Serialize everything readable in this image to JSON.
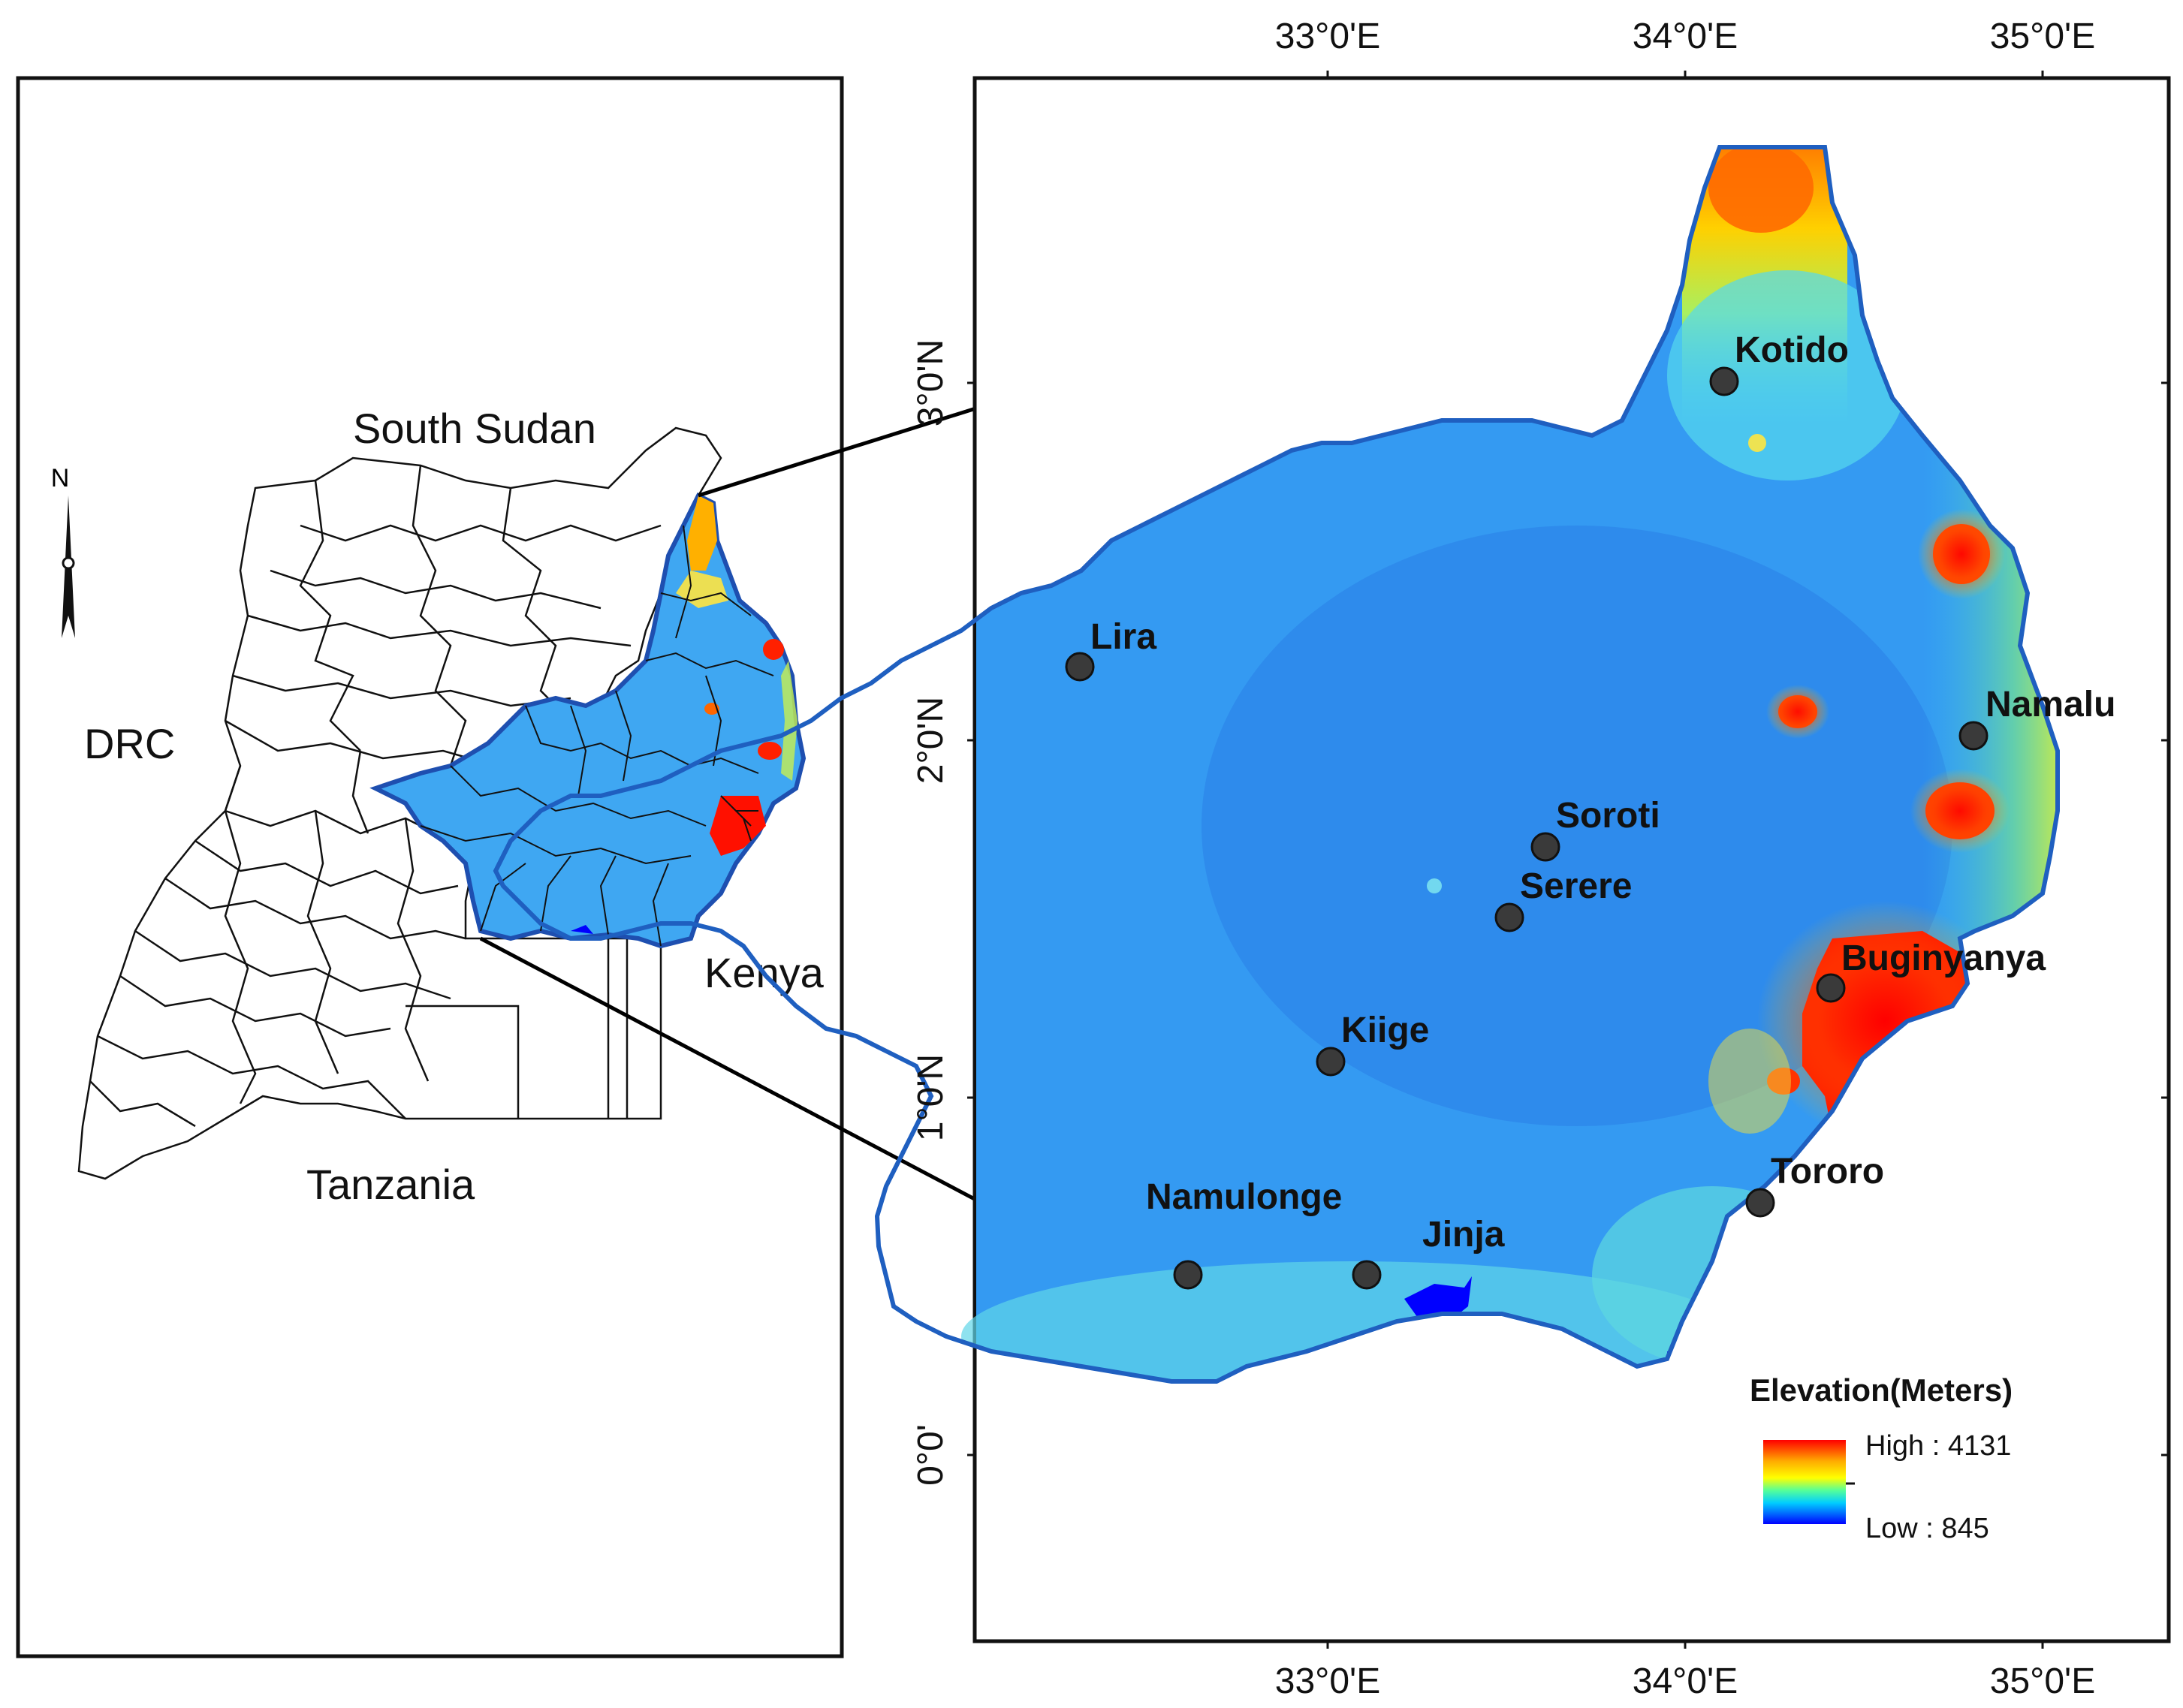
{
  "overview_map": {
    "north_label": "N",
    "countries": [
      {
        "key": "south_sudan",
        "name": "South Sudan"
      },
      {
        "key": "drc",
        "name": "DRC"
      },
      {
        "key": "kenya",
        "name": "Kenya"
      },
      {
        "key": "tanzania",
        "name": "Tanzania"
      }
    ]
  },
  "detail_map": {
    "lon_ticks": [
      "33°0'E",
      "34°0'E",
      "35°0'E"
    ],
    "lat_ticks": [
      "0°0'",
      "1°0'N",
      "2°0'N",
      "3°0'N"
    ],
    "stations": [
      {
        "key": "kotido",
        "name": "Kotido"
      },
      {
        "key": "lira",
        "name": "Lira"
      },
      {
        "key": "namalu",
        "name": "Namalu"
      },
      {
        "key": "soroti",
        "name": "Soroti"
      },
      {
        "key": "serere",
        "name": "Serere"
      },
      {
        "key": "buginyanya",
        "name": "Buginyanya"
      },
      {
        "key": "kiige",
        "name": "Kiige"
      },
      {
        "key": "tororo",
        "name": "Tororo"
      },
      {
        "key": "namulonge",
        "name": "Namulonge"
      },
      {
        "key": "jinja",
        "name": "Jinja"
      }
    ],
    "legend": {
      "title": "Elevation(Meters)",
      "high_label": "High : 4131",
      "low_label": "Low : 845",
      "colors": [
        "#ff0000",
        "#ffaa00",
        "#ffff00",
        "#55ff99",
        "#00ccff",
        "#0055ff",
        "#0000ff"
      ]
    }
  }
}
